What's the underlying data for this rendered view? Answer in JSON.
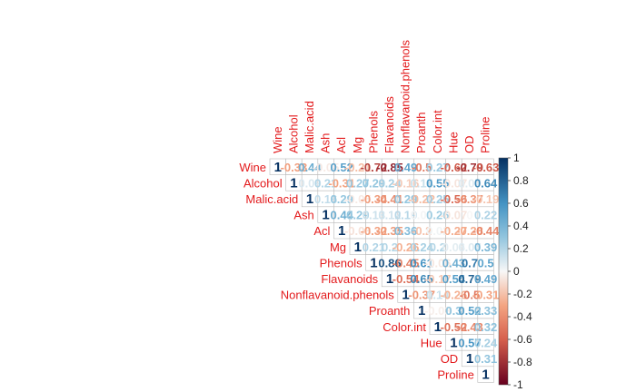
{
  "chart_data": {
    "type": "heatmap",
    "variables": [
      "Wine",
      "Alcohol",
      "Malic.acid",
      "Ash",
      "Acl",
      "Mg",
      "Phenols",
      "Flavanoids",
      "Nonflavanoid.phenols",
      "Proanth",
      "Color.int",
      "Hue",
      "OD",
      "Proline"
    ],
    "matrix_shape": "upper",
    "method": "number",
    "matrix": [
      [
        1,
        -0.33,
        0.44,
        -0.05,
        0.52,
        -0.21,
        -0.72,
        -0.85,
        0.49,
        -0.5,
        0.27,
        -0.62,
        -0.79,
        -0.63
      ],
      [
        null,
        1,
        0.09,
        0.21,
        -0.31,
        0.27,
        0.29,
        0.24,
        -0.16,
        0.14,
        0.55,
        -0.07,
        0.07,
        0.64
      ],
      [
        null,
        null,
        1,
        0.16,
        0.29,
        -0.05,
        -0.34,
        -0.41,
        0.29,
        -0.22,
        0.25,
        -0.56,
        -0.37,
        -0.19
      ],
      [
        null,
        null,
        null,
        1,
        0.44,
        0.29,
        0.13,
        0.12,
        0.19,
        0.01,
        0.26,
        -0.07,
        0.0,
        0.22
      ],
      [
        null,
        null,
        null,
        null,
        1,
        -0.08,
        -0.32,
        -0.35,
        0.36,
        -0.2,
        0.02,
        -0.27,
        -0.28,
        -0.44
      ],
      [
        null,
        null,
        null,
        null,
        null,
        1,
        0.21,
        0.2,
        -0.26,
        0.24,
        0.2,
        0.06,
        0.07,
        0.39
      ],
      [
        null,
        null,
        null,
        null,
        null,
        null,
        1,
        0.86,
        -0.45,
        0.61,
        -0.06,
        0.43,
        0.7,
        0.5
      ],
      [
        null,
        null,
        null,
        null,
        null,
        null,
        null,
        1,
        -0.54,
        0.65,
        -0.17,
        0.54,
        0.79,
        0.49
      ],
      [
        null,
        null,
        null,
        null,
        null,
        null,
        null,
        null,
        1,
        -0.37,
        0.14,
        -0.26,
        -0.5,
        -0.31
      ],
      [
        null,
        null,
        null,
        null,
        null,
        null,
        null,
        null,
        null,
        1,
        -0.03,
        0.3,
        0.52,
        0.33
      ],
      [
        null,
        null,
        null,
        null,
        null,
        null,
        null,
        null,
        null,
        null,
        1,
        -0.52,
        -0.43,
        0.32
      ],
      [
        null,
        null,
        null,
        null,
        null,
        null,
        null,
        null,
        null,
        null,
        null,
        1,
        0.57,
        0.24
      ],
      [
        null,
        null,
        null,
        null,
        null,
        null,
        null,
        null,
        null,
        null,
        null,
        null,
        1,
        0.31
      ],
      [
        null,
        null,
        null,
        null,
        null,
        null,
        null,
        null,
        null,
        null,
        null,
        null,
        null,
        1
      ]
    ],
    "colorbar": {
      "range": [
        -1,
        1
      ],
      "ticks": [
        "1",
        "0.8",
        "0.6",
        "0.4",
        "0.2",
        "0",
        "-0.2",
        "-0.4",
        "-0.6",
        "-0.8",
        "-1"
      ]
    },
    "colors": {
      "positive": "#053061",
      "neutral": "#f7f7f7",
      "negative": "#67001f",
      "label": "#e31a1c",
      "grid": "#bbbbbb"
    }
  }
}
